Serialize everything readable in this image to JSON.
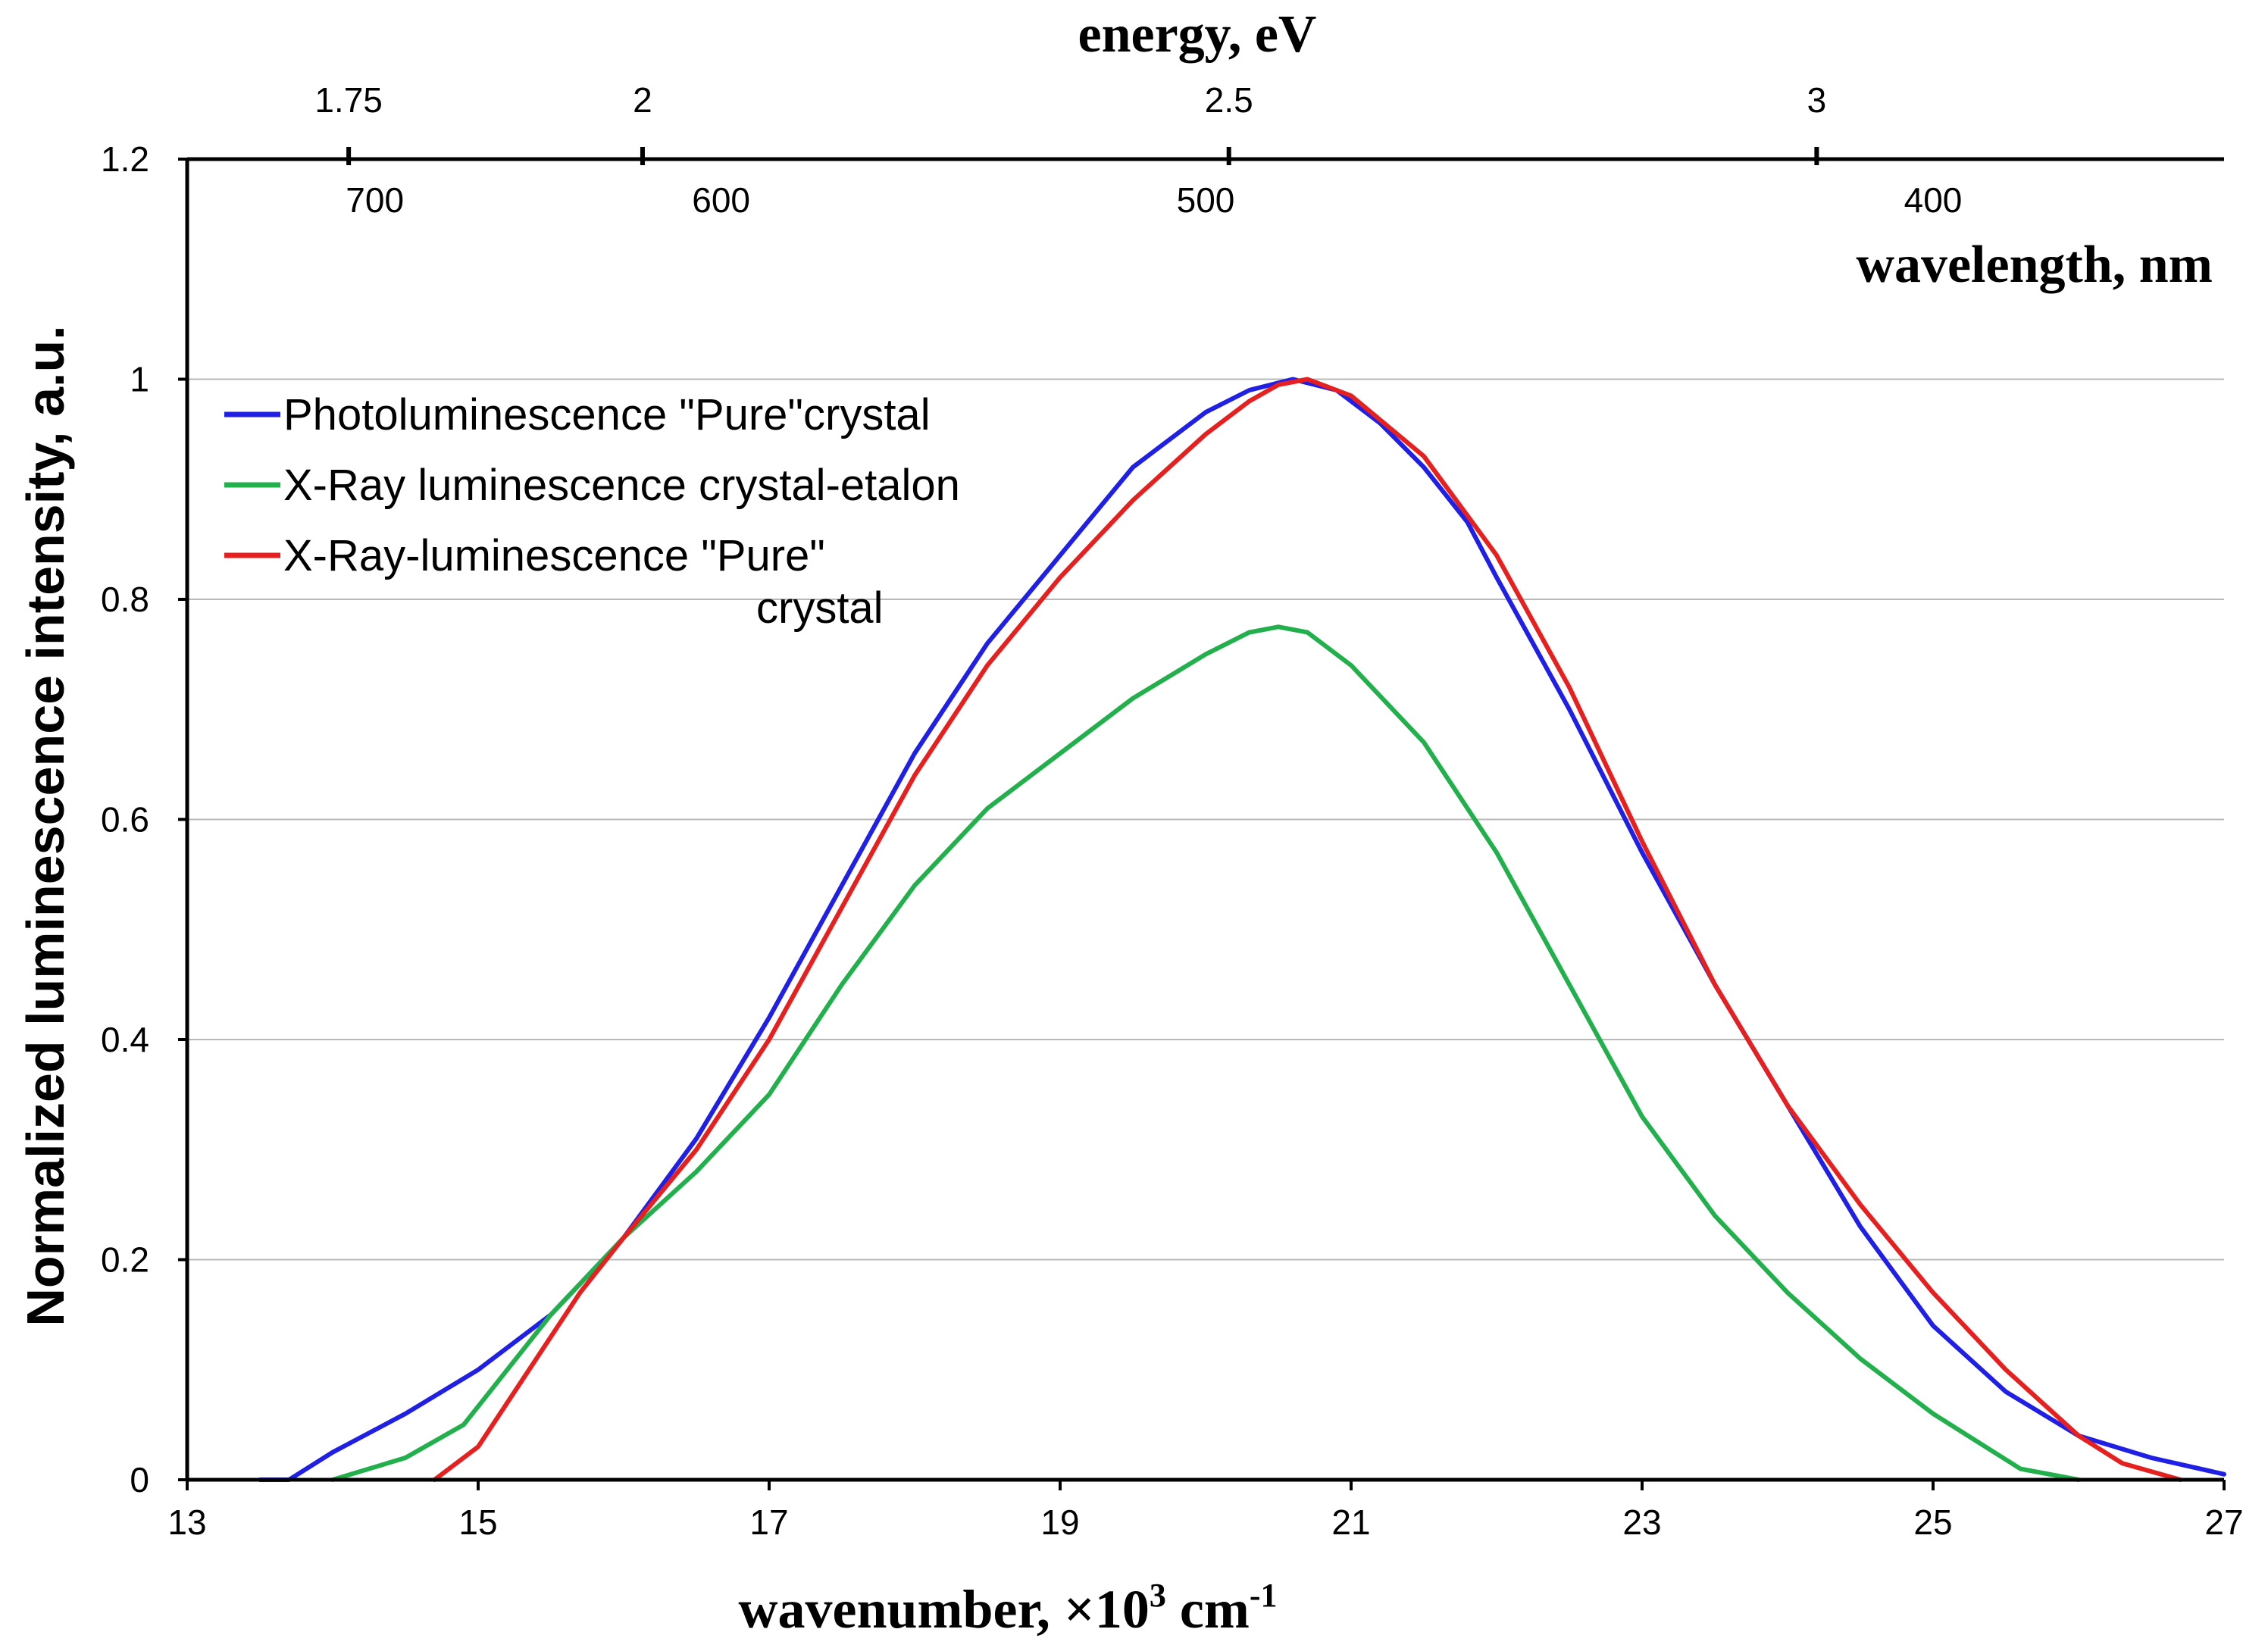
{
  "chart_data": {
    "type": "line",
    "xlabel_main": "wavenumber, ×10",
    "xlabel_sup": "3",
    "xlabel_unit": " cm",
    "xlabel_unit_sup": "-1",
    "ylabel": "Normalized luminescence intensity, a.u.",
    "top_axis_title": "energy, eV",
    "wavelength_title": "wavelength, nm",
    "xlim": [
      13,
      27
    ],
    "ylim": [
      0,
      1.2
    ],
    "x_ticks": [
      "13",
      "15",
      "17",
      "19",
      "21",
      "23",
      "25",
      "27"
    ],
    "y_ticks": [
      "0",
      "0.2",
      "0.4",
      "0.6",
      "0.8",
      "1",
      "1.2"
    ],
    "energy_ticks": [
      {
        "label": "1.75",
        "wavenumber": 14.11
      },
      {
        "label": "2",
        "wavenumber": 16.13
      },
      {
        "label": "2.5",
        "wavenumber": 20.16
      },
      {
        "label": "3",
        "wavenumber": 24.2
      }
    ],
    "wavelength_ticks": [
      {
        "label": "700",
        "wavenumber": 14.29
      },
      {
        "label": "600",
        "wavenumber": 16.67
      },
      {
        "label": "500",
        "wavenumber": 20.0
      },
      {
        "label": "400",
        "wavenumber": 25.0
      }
    ],
    "legend": {
      "placement": "top-left",
      "entries": [
        {
          "label": "Photoluminescence \"Pure\"crystal",
          "color": "#1f1fe6"
        },
        {
          "label": "X-Ray luminescence crystal-etalon",
          "color": "#22b04c"
        },
        {
          "label": "X-Ray-luminescence \"Pure\"",
          "label_line2": "crystal",
          "color": "#e61f1f"
        }
      ]
    },
    "series": [
      {
        "name": "Photoluminescence \"Pure\"crystal",
        "color": "#1f1fe6",
        "x": [
          13.5,
          13.7,
          14.0,
          14.5,
          15.0,
          15.5,
          16.0,
          16.5,
          17.0,
          17.5,
          18.0,
          18.5,
          19.0,
          19.5,
          20.0,
          20.3,
          20.6,
          20.9,
          21.2,
          21.5,
          21.8,
          22.0,
          22.5,
          23.0,
          23.5,
          24.0,
          24.5,
          25.0,
          25.5,
          26.0,
          26.5,
          27.0
        ],
        "y": [
          0.0,
          0.0,
          0.025,
          0.06,
          0.1,
          0.15,
          0.22,
          0.31,
          0.42,
          0.54,
          0.66,
          0.76,
          0.84,
          0.92,
          0.97,
          0.99,
          1.0,
          0.99,
          0.96,
          0.92,
          0.87,
          0.82,
          0.7,
          0.57,
          0.45,
          0.34,
          0.23,
          0.14,
          0.08,
          0.04,
          0.02,
          0.005
        ]
      },
      {
        "name": "X-Ray luminescence crystal-etalon",
        "color": "#22b04c",
        "x": [
          14.0,
          14.5,
          14.9,
          15.2,
          15.5,
          16.0,
          16.5,
          17.0,
          17.5,
          18.0,
          18.5,
          19.0,
          19.5,
          20.0,
          20.3,
          20.5,
          20.7,
          21.0,
          21.5,
          22.0,
          22.5,
          23.0,
          23.5,
          24.0,
          24.5,
          25.0,
          25.3,
          25.6,
          26.0
        ],
        "y": [
          0.0,
          0.02,
          0.05,
          0.1,
          0.15,
          0.22,
          0.28,
          0.35,
          0.45,
          0.54,
          0.61,
          0.66,
          0.71,
          0.75,
          0.77,
          0.775,
          0.77,
          0.74,
          0.67,
          0.57,
          0.45,
          0.33,
          0.24,
          0.17,
          0.11,
          0.06,
          0.035,
          0.01,
          0.0
        ]
      },
      {
        "name": "X-Ray-luminescence \"Pure\" crystal",
        "color": "#e61f1f",
        "x": [
          14.7,
          15.0,
          15.3,
          15.7,
          16.0,
          16.5,
          17.0,
          17.5,
          18.0,
          18.5,
          19.0,
          19.5,
          20.0,
          20.3,
          20.5,
          20.7,
          21.0,
          21.5,
          22.0,
          22.5,
          23.0,
          23.5,
          24.0,
          24.5,
          25.0,
          25.5,
          26.0,
          26.3,
          26.7
        ],
        "y": [
          0.0,
          0.03,
          0.09,
          0.17,
          0.22,
          0.3,
          0.4,
          0.52,
          0.64,
          0.74,
          0.82,
          0.89,
          0.95,
          0.98,
          0.995,
          1.0,
          0.985,
          0.93,
          0.84,
          0.72,
          0.58,
          0.45,
          0.34,
          0.25,
          0.17,
          0.1,
          0.04,
          0.015,
          0.0
        ]
      }
    ]
  }
}
